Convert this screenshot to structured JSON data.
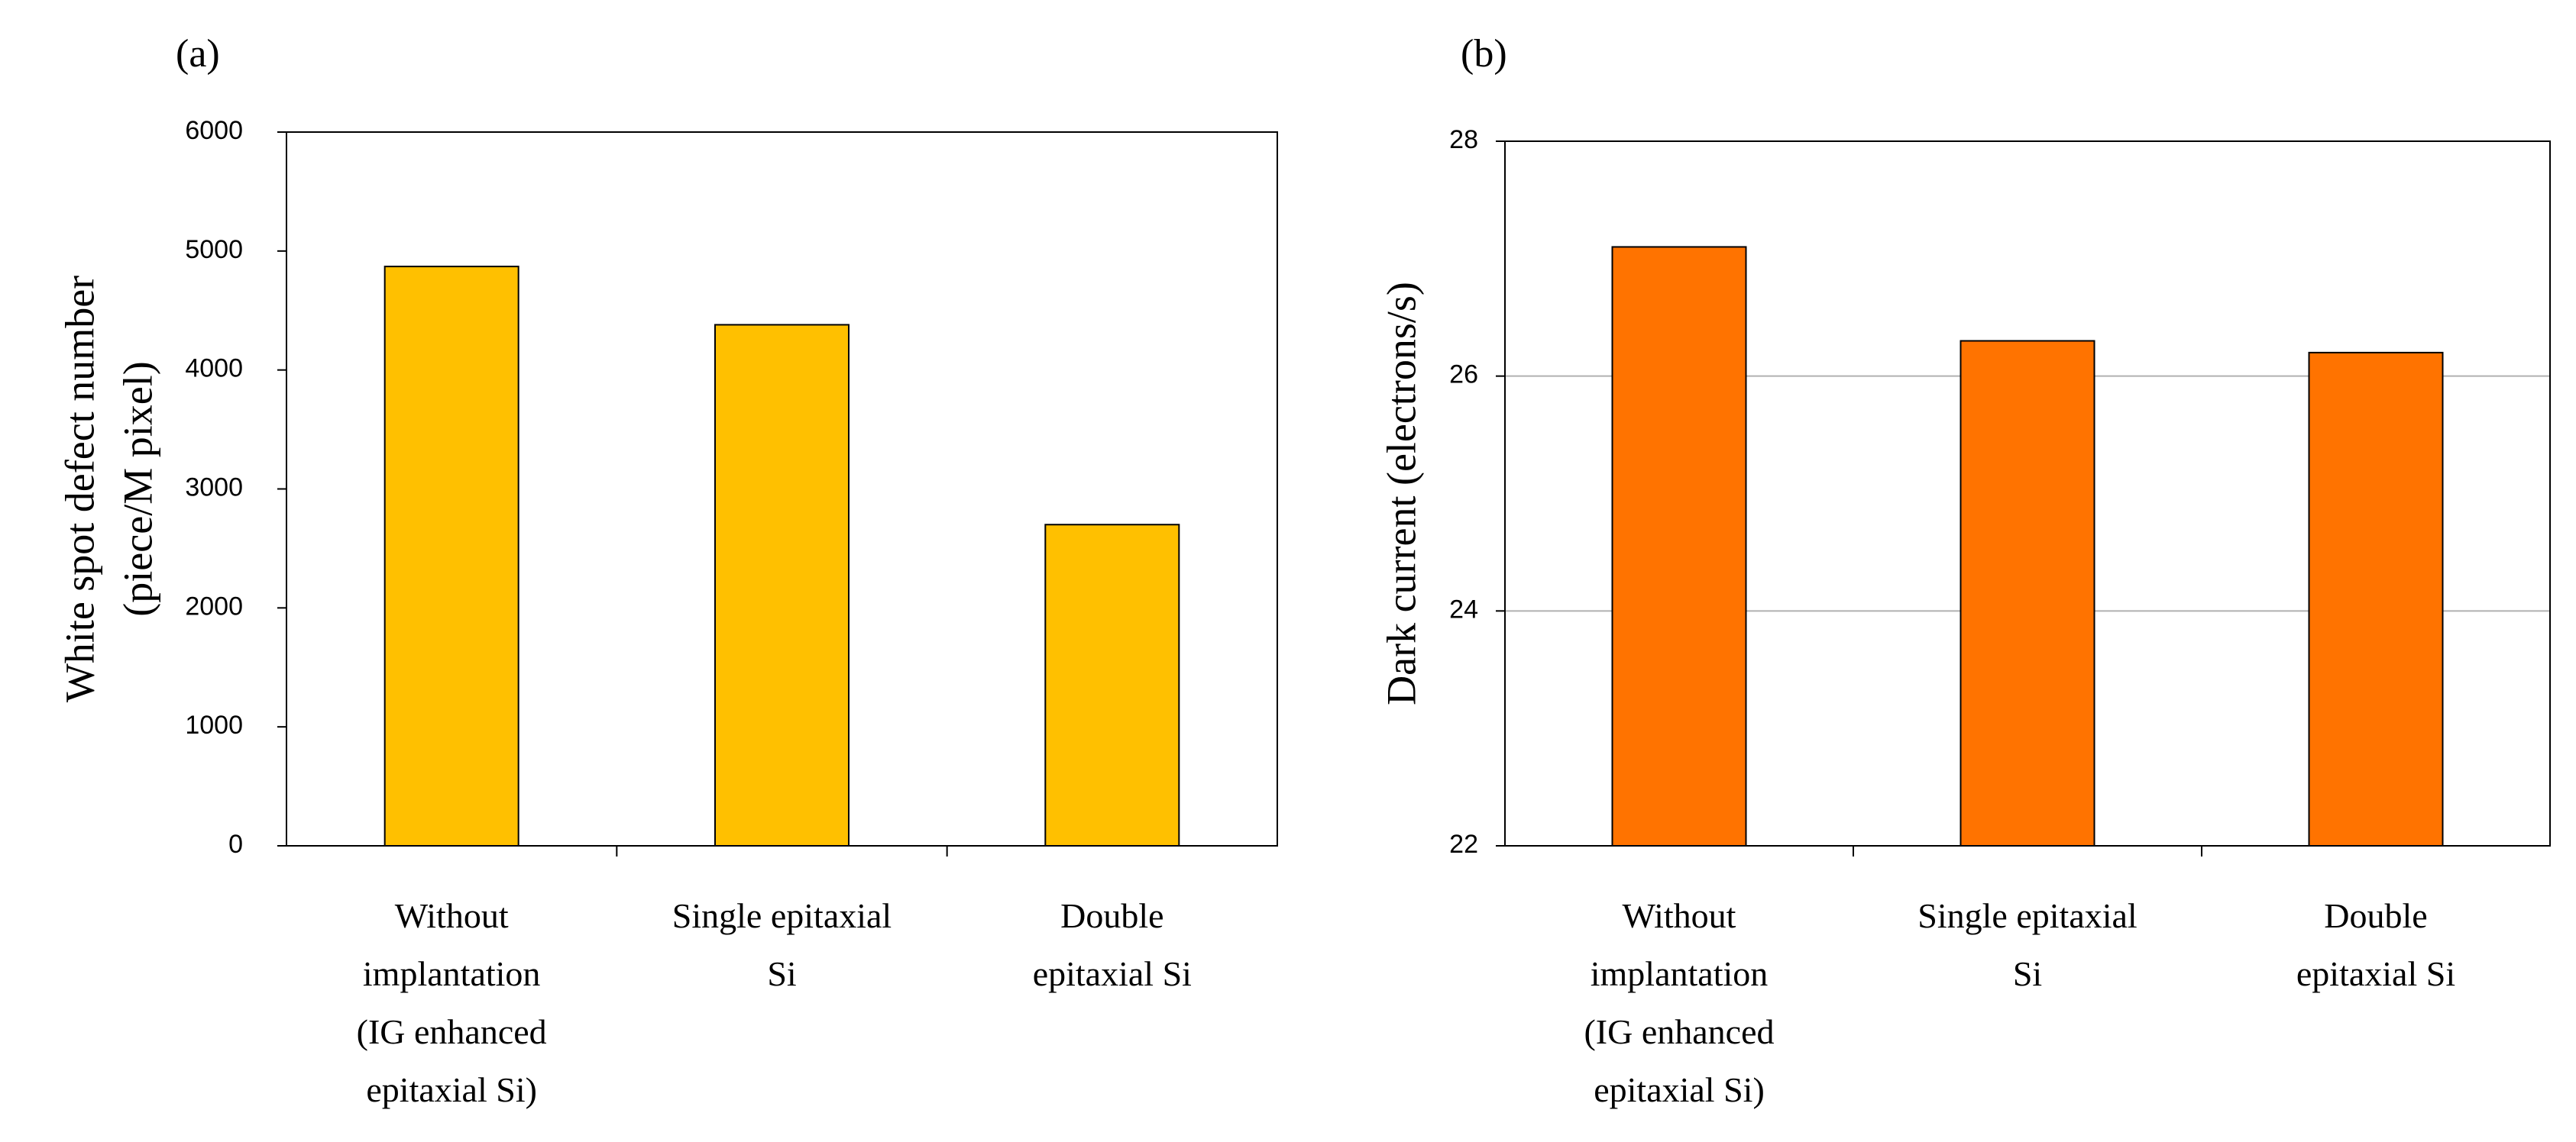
{
  "chart_data": [
    {
      "panel": "(a)",
      "type": "bar",
      "categories": [
        [
          "Without",
          "implantation",
          "(IG enhanced",
          "epitaxial Si)"
        ],
        [
          "Single epitaxial",
          "Si"
        ],
        [
          "Double",
          "epitaxial Si"
        ]
      ],
      "values": [
        4870,
        4380,
        2700
      ],
      "ylabel": [
        "White spot defect number",
        "(piece/M pixel)"
      ],
      "ylim": [
        0,
        6000
      ],
      "yticks": [
        "0",
        "1000",
        "2000",
        "3000",
        "4000",
        "5000",
        "6000"
      ],
      "gridlines": false,
      "color": "#FFC000"
    },
    {
      "panel": "(b)",
      "type": "bar",
      "categories": [
        [
          "Without",
          "implantation",
          "(IG enhanced",
          "epitaxial Si)"
        ],
        [
          "Single epitaxial",
          "Si"
        ],
        [
          "Double",
          "epitaxial Si"
        ]
      ],
      "values": [
        27.1,
        26.3,
        26.2
      ],
      "ylabel": [
        "Dark current (electrons/s)"
      ],
      "ylim": [
        22,
        28
      ],
      "yticks": [
        "22",
        "24",
        "26",
        "28"
      ],
      "gridlines": true,
      "color": "#FF7300"
    }
  ]
}
